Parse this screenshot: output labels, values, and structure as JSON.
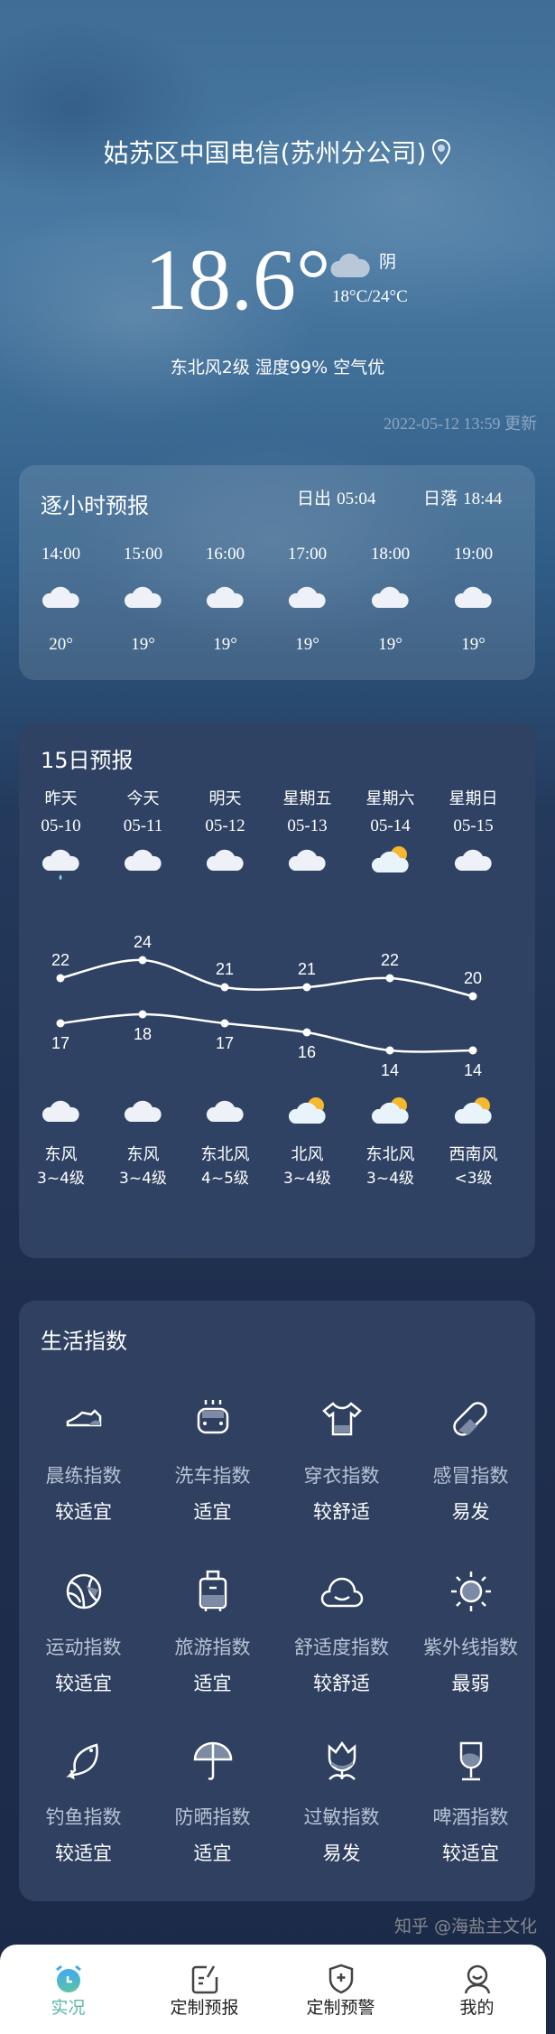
{
  "header": {
    "location": "姑苏区中国电信(苏州分公司)",
    "temperature": "18.6°",
    "condition": "阴",
    "range": "18°C/24°C",
    "details": "东北风2级 湿度99% 空气优",
    "updated": "2022-05-12 13:59 更新"
  },
  "hourly": {
    "title": "逐小时预报",
    "sunrise_label": "日出",
    "sunrise": "05:04",
    "sunset_label": "日落",
    "sunset": "18:44",
    "items": [
      {
        "time": "14:00",
        "temp": "20°",
        "icon": "cloudy-icon"
      },
      {
        "time": "15:00",
        "temp": "19°",
        "icon": "cloudy-icon"
      },
      {
        "time": "16:00",
        "temp": "19°",
        "icon": "cloudy-icon"
      },
      {
        "time": "17:00",
        "temp": "19°",
        "icon": "cloudy-icon"
      },
      {
        "time": "18:00",
        "temp": "19°",
        "icon": "cloudy-icon"
      },
      {
        "time": "19:00",
        "temp": "19°",
        "icon": "cloudy-icon"
      }
    ]
  },
  "daily": {
    "title": "15日预报",
    "items": [
      {
        "day": "昨天",
        "date": "05-10",
        "icon": "rain-icon",
        "night_icon": "cloudy-icon",
        "wind": "东风",
        "level": "3~4级"
      },
      {
        "day": "今天",
        "date": "05-11",
        "icon": "cloudy-icon",
        "night_icon": "cloudy-icon",
        "wind": "东风",
        "level": "3~4级"
      },
      {
        "day": "明天",
        "date": "05-12",
        "icon": "cloudy-icon",
        "night_icon": "cloudy-icon",
        "wind": "东北风",
        "level": "4~5级"
      },
      {
        "day": "星期五",
        "date": "05-13",
        "icon": "cloudy-icon",
        "night_icon": "partly-cloudy-icon",
        "wind": "北风",
        "level": "3~4级"
      },
      {
        "day": "星期六",
        "date": "05-14",
        "icon": "partly-cloudy-icon",
        "night_icon": "partly-cloudy-icon",
        "wind": "东北风",
        "level": "3~4级"
      },
      {
        "day": "星期日",
        "date": "05-15",
        "icon": "cloudy-icon",
        "night_icon": "partly-cloudy-icon",
        "wind": "西南风",
        "level": "<3级"
      }
    ]
  },
  "chart_data": {
    "type": "line",
    "categories": [
      "05-10",
      "05-11",
      "05-12",
      "05-13",
      "05-14",
      "05-15"
    ],
    "series": [
      {
        "values": [
          22,
          24,
          21,
          21,
          22,
          20
        ]
      },
      {
        "values": [
          17,
          18,
          17,
          16,
          14,
          14
        ]
      }
    ]
  },
  "life": {
    "title": "生活指数",
    "items": [
      {
        "label": "晨练指数",
        "value": "较适宜",
        "icon": "sneaker-icon"
      },
      {
        "label": "洗车指数",
        "value": "适宜",
        "icon": "car-wash-icon"
      },
      {
        "label": "穿衣指数",
        "value": "较舒适",
        "icon": "tshirt-icon"
      },
      {
        "label": "感冒指数",
        "value": "易发",
        "icon": "pill-icon"
      },
      {
        "label": "运动指数",
        "value": "较适宜",
        "icon": "ball-icon"
      },
      {
        "label": "旅游指数",
        "value": "适宜",
        "icon": "luggage-icon"
      },
      {
        "label": "舒适度指数",
        "value": "较舒适",
        "icon": "smile-cloud-icon"
      },
      {
        "label": "紫外线指数",
        "value": "最弱",
        "icon": "sun-icon"
      },
      {
        "label": "钓鱼指数",
        "value": "较适宜",
        "icon": "fish-icon"
      },
      {
        "label": "防晒指数",
        "value": "适宜",
        "icon": "umbrella-icon"
      },
      {
        "label": "过敏指数",
        "value": "易发",
        "icon": "flower-icon"
      },
      {
        "label": "啤酒指数",
        "value": "较适宜",
        "icon": "wine-glass-icon"
      }
    ]
  },
  "nav": {
    "items": [
      {
        "label": "实况",
        "icon": "alarm-clock-icon",
        "active": true
      },
      {
        "label": "定制预报",
        "icon": "edit-note-icon"
      },
      {
        "label": "定制预警",
        "icon": "shield-plus-icon"
      },
      {
        "label": "我的",
        "icon": "user-icon"
      }
    ],
    "active_color": "#5bb8a8"
  },
  "watermark": "知乎 @海盐主文化"
}
